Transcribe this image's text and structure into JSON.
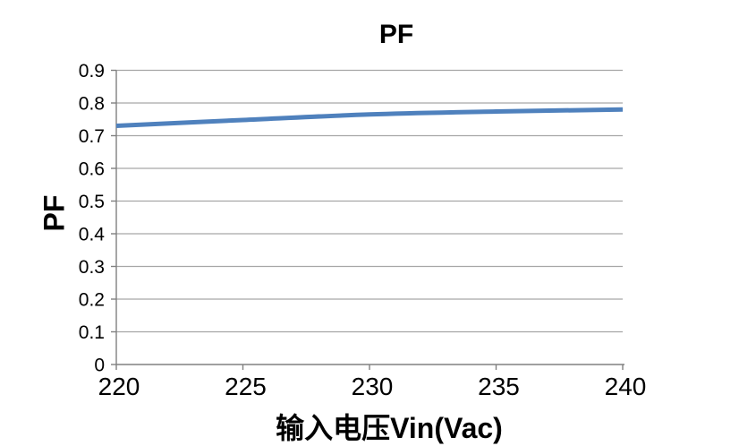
{
  "chart": {
    "title": "PF",
    "x_axis_label": "输入电压Vin(Vac)",
    "y_axis_label": "PF"
  },
  "chart_data": {
    "type": "line",
    "title": "PF",
    "xlabel": "输入电压Vin(Vac)",
    "ylabel": "PF",
    "x": [
      220,
      225,
      230,
      235,
      240
    ],
    "series": [
      {
        "name": "PF",
        "values": [
          0.73,
          0.748,
          0.765,
          0.774,
          0.78
        ]
      }
    ],
    "xlim": [
      220,
      240
    ],
    "ylim": [
      0,
      0.9
    ],
    "x_ticks": [
      220,
      225,
      230,
      235,
      240
    ],
    "x_tick_labels": [
      "220",
      "225",
      "230",
      "235",
      "240"
    ],
    "y_ticks": [
      0,
      0.1,
      0.2,
      0.3,
      0.4,
      0.5,
      0.6,
      0.7,
      0.8,
      0.9
    ],
    "y_tick_labels": [
      "0",
      "0.1",
      "0.2",
      "0.3",
      "0.4",
      "0.5",
      "0.6",
      "0.7",
      "0.8",
      "0.9"
    ],
    "grid": "horizontal",
    "legend": "none",
    "line_color": "#4F81BD",
    "line_width": 5,
    "gridline_color": "#A6A6A6",
    "axis_color": "#808080",
    "text_color": "#000000",
    "background_color": "#FFFFFF"
  }
}
